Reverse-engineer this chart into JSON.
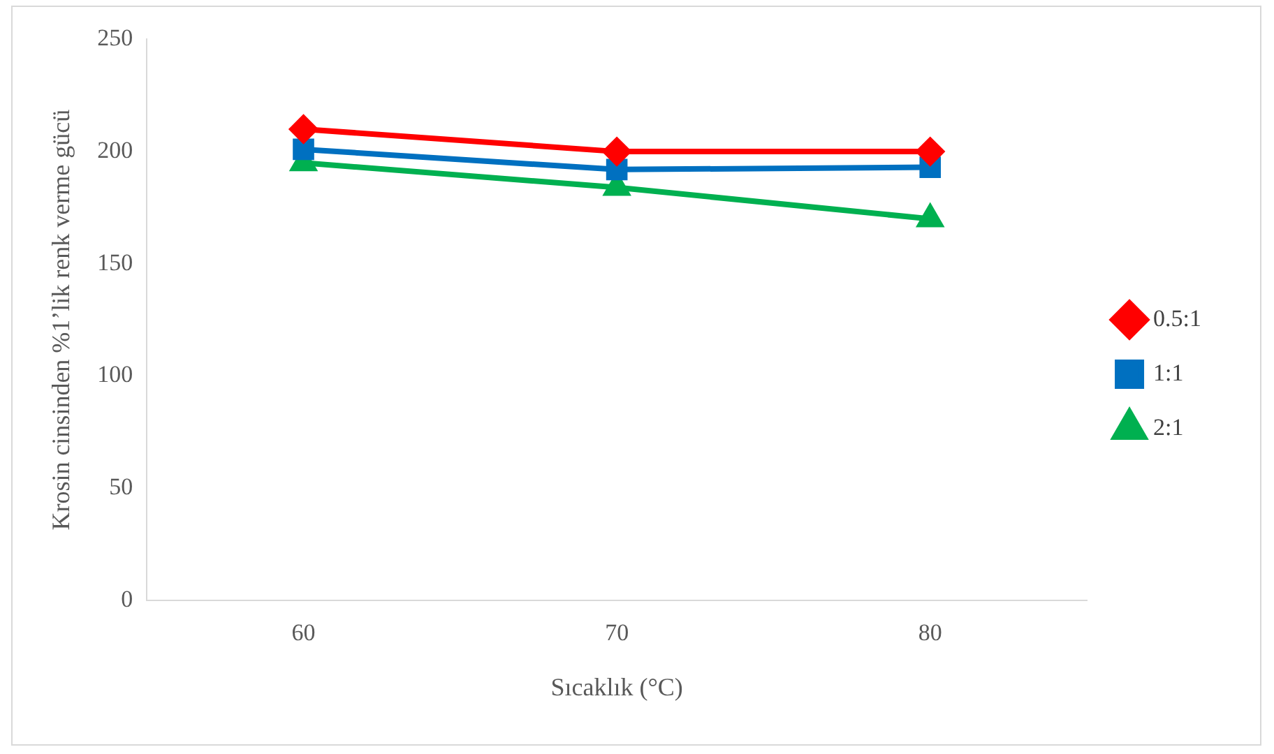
{
  "chart_data": {
    "type": "line",
    "xlabel": "Sıcaklık (°C)",
    "ylabel": "Krosin cinsinden %1’lik renk verme gücü",
    "categories": [
      "60",
      "70",
      "80"
    ],
    "ylim": [
      0,
      250
    ],
    "yticks": [
      0,
      50,
      100,
      150,
      200,
      250
    ],
    "grid": false,
    "legend": "right",
    "line_style": "solid",
    "series": [
      {
        "name": "0.5:1",
        "color": "#ff0000",
        "marker": "diamond",
        "values": [
          210,
          200,
          200
        ]
      },
      {
        "name": "1:1",
        "color": "#0070c0",
        "marker": "square",
        "values": [
          201,
          192,
          193
        ]
      },
      {
        "name": "2:1",
        "color": "#00b050",
        "marker": "triangle",
        "values": [
          195,
          184,
          170
        ]
      }
    ]
  }
}
